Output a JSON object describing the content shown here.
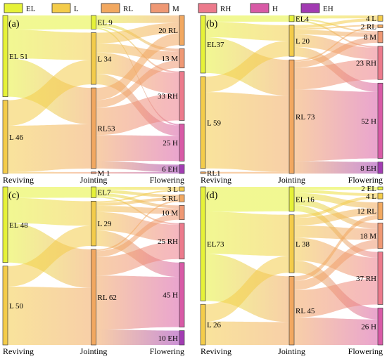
{
  "chart_data": {
    "type": "sankey",
    "legend": {
      "position": "top-left",
      "items": [
        {
          "key": "EL",
          "label": "EL",
          "color": "#e6f238"
        },
        {
          "key": "L",
          "label": "L",
          "color": "#f4cc4a"
        },
        {
          "key": "RL",
          "label": "RL",
          "color": "#f2a860"
        },
        {
          "key": "M",
          "label": "M",
          "color": "#ef9874"
        },
        {
          "key": "RH",
          "label": "RH",
          "color": "#ec7a8c"
        },
        {
          "key": "H",
          "label": "H",
          "color": "#d85aa6"
        },
        {
          "key": "EH",
          "label": "EH",
          "color": "#a23bb2"
        }
      ]
    },
    "stage_labels": [
      "Reviving",
      "Jointing",
      "Flowering"
    ],
    "panels": [
      {
        "id": "(a)",
        "nodes": [
          [
            {
              "key": "EL",
              "label": "EL 51",
              "value": 51
            },
            {
              "key": "L",
              "label": "L 46",
              "value": 46
            }
          ],
          [
            {
              "key": "EL",
              "label": "EL 9",
              "value": 9
            },
            {
              "key": "L",
              "label": "L 34",
              "value": 34
            },
            {
              "key": "RL",
              "label": "RL53",
              "value": 53
            },
            {
              "key": "M",
              "label": "M 1",
              "value": 1
            }
          ],
          [
            {
              "key": "RL",
              "label": "20 RL",
              "value": 20
            },
            {
              "key": "M",
              "label": "13 M",
              "value": 13
            },
            {
              "key": "RH",
              "label": "33 RH",
              "value": 33
            },
            {
              "key": "H",
              "label": "25 H",
              "value": 25
            },
            {
              "key": "EH",
              "label": "6 EH",
              "value": 6
            }
          ]
        ],
        "links": [
          [
            [
              0,
              0,
              9
            ],
            [
              0,
              1,
              18
            ],
            [
              0,
              2,
              24
            ],
            [
              1,
              1,
              16
            ],
            [
              1,
              2,
              29
            ],
            [
              1,
              3,
              1
            ]
          ],
          [
            [
              0,
              0,
              5
            ],
            [
              0,
              1,
              2
            ],
            [
              0,
              2,
              1
            ],
            [
              0,
              3,
              1
            ],
            [
              1,
              0,
              7
            ],
            [
              1,
              1,
              6
            ],
            [
              1,
              2,
              14
            ],
            [
              1,
              3,
              7
            ],
            [
              2,
              0,
              8
            ],
            [
              2,
              1,
              5
            ],
            [
              2,
              2,
              18
            ],
            [
              2,
              3,
              17
            ],
            [
              2,
              4,
              5
            ],
            [
              3,
              4,
              1
            ]
          ]
        ]
      },
      {
        "id": "(b)",
        "nodes": [
          [
            {
              "key": "EL",
              "label": "EL37",
              "value": 37
            },
            {
              "key": "L",
              "label": "L 59",
              "value": 59
            },
            {
              "key": "RL",
              "label": "RL1",
              "value": 1
            }
          ],
          [
            {
              "key": "EL",
              "label": "EL4",
              "value": 4
            },
            {
              "key": "L",
              "label": "L 20",
              "value": 20
            },
            {
              "key": "RL",
              "label": "RL 73",
              "value": 73
            }
          ],
          [
            {
              "key": "L",
              "label": "4 L",
              "value": 4
            },
            {
              "key": "RL",
              "label": "2 RL",
              "value": 2
            },
            {
              "key": "M",
              "label": "8 M",
              "value": 8
            },
            {
              "key": "RH",
              "label": "23 RH",
              "value": 23
            },
            {
              "key": "H",
              "label": "52 H",
              "value": 52
            },
            {
              "key": "EH",
              "label": "8 EH",
              "value": 8
            }
          ]
        ],
        "links": [
          [
            [
              0,
              0,
              4
            ],
            [
              0,
              1,
              10
            ],
            [
              0,
              2,
              23
            ],
            [
              1,
              1,
              10
            ],
            [
              1,
              2,
              49
            ],
            [
              2,
              2,
              1
            ]
          ],
          [
            [
              0,
              0,
              2
            ],
            [
              0,
              2,
              1
            ],
            [
              0,
              3,
              1
            ],
            [
              1,
              0,
              2
            ],
            [
              1,
              1,
              1
            ],
            [
              1,
              2,
              3
            ],
            [
              1,
              3,
              8
            ],
            [
              1,
              4,
              6
            ],
            [
              2,
              1,
              1
            ],
            [
              2,
              2,
              4
            ],
            [
              2,
              3,
              14
            ],
            [
              2,
              4,
              46
            ],
            [
              2,
              5,
              8
            ]
          ]
        ]
      },
      {
        "id": "(c)",
        "nodes": [
          [
            {
              "key": "EL",
              "label": "EL 48",
              "value": 48
            },
            {
              "key": "L",
              "label": "L 50",
              "value": 50
            }
          ],
          [
            {
              "key": "EL",
              "label": "EL7",
              "value": 7
            },
            {
              "key": "L",
              "label": "L 29",
              "value": 29
            },
            {
              "key": "RL",
              "label": "RL 62",
              "value": 62
            }
          ],
          [
            {
              "key": "L",
              "label": "3 L",
              "value": 3
            },
            {
              "key": "RL",
              "label": "5 RL",
              "value": 5
            },
            {
              "key": "M",
              "label": "10 M",
              "value": 10
            },
            {
              "key": "RH",
              "label": "25 RH",
              "value": 25
            },
            {
              "key": "H",
              "label": "45 H",
              "value": 45
            },
            {
              "key": "EH",
              "label": "10 EH",
              "value": 10
            }
          ]
        ],
        "links": [
          [
            [
              0,
              0,
              7
            ],
            [
              0,
              1,
              16
            ],
            [
              0,
              2,
              25
            ],
            [
              1,
              1,
              13
            ],
            [
              1,
              2,
              37
            ]
          ],
          [
            [
              0,
              0,
              2
            ],
            [
              0,
              1,
              2
            ],
            [
              0,
              2,
              2
            ],
            [
              0,
              3,
              1
            ],
            [
              1,
              0,
              1
            ],
            [
              1,
              1,
              2
            ],
            [
              1,
              2,
              4
            ],
            [
              1,
              3,
              12
            ],
            [
              1,
              4,
              10
            ],
            [
              2,
              1,
              1
            ],
            [
              2,
              2,
              4
            ],
            [
              2,
              3,
              12
            ],
            [
              2,
              4,
              35
            ],
            [
              2,
              5,
              10
            ]
          ]
        ]
      },
      {
        "id": "(d)",
        "nodes": [
          [
            {
              "key": "EL",
              "label": "EL73",
              "value": 73
            },
            {
              "key": "L",
              "label": "L 26",
              "value": 26
            }
          ],
          [
            {
              "key": "EL",
              "label": "EL 16",
              "value": 16
            },
            {
              "key": "L",
              "label": "L 38",
              "value": 38
            },
            {
              "key": "RL",
              "label": "RL 45",
              "value": 45
            }
          ],
          [
            {
              "key": "EL",
              "label": "2 EL",
              "value": 2
            },
            {
              "key": "L",
              "label": "4 L",
              "value": 4
            },
            {
              "key": "RL",
              "label": "12 RL",
              "value": 12
            },
            {
              "key": "M",
              "label": "18 M",
              "value": 18
            },
            {
              "key": "RH",
              "label": "37 RH",
              "value": 37
            },
            {
              "key": "H",
              "label": "26 H",
              "value": 26
            }
          ]
        ],
        "links": [
          [
            [
              0,
              0,
              16
            ],
            [
              0,
              1,
              27
            ],
            [
              0,
              2,
              30
            ],
            [
              1,
              1,
              11
            ],
            [
              1,
              2,
              15
            ]
          ],
          [
            [
              0,
              0,
              2
            ],
            [
              0,
              1,
              2
            ],
            [
              0,
              2,
              4
            ],
            [
              0,
              3,
              4
            ],
            [
              0,
              4,
              4
            ],
            [
              1,
              1,
              2
            ],
            [
              1,
              2,
              5
            ],
            [
              1,
              3,
              8
            ],
            [
              1,
              4,
              15
            ],
            [
              1,
              5,
              8
            ],
            [
              2,
              2,
              3
            ],
            [
              2,
              3,
              6
            ],
            [
              2,
              4,
              18
            ],
            [
              2,
              5,
              18
            ]
          ]
        ]
      }
    ]
  }
}
